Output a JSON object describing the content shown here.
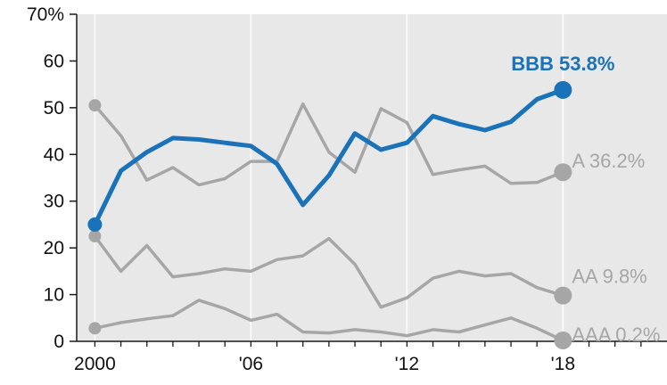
{
  "chart_data": {
    "type": "line",
    "title": "",
    "xlabel": "",
    "ylabel": "",
    "x": [
      2000,
      2001,
      2002,
      2003,
      2004,
      2005,
      2006,
      2007,
      2008,
      2009,
      2010,
      2011,
      2012,
      2013,
      2014,
      2015,
      2016,
      2017,
      2018
    ],
    "xlim": [
      1999.3,
      2022
    ],
    "ylim": [
      0,
      70
    ],
    "y_ticks": [
      0,
      10,
      20,
      30,
      40,
      50,
      60,
      70
    ],
    "y_tick_labels": [
      "0",
      "10",
      "20",
      "30",
      "40",
      "50",
      "60",
      "70%"
    ],
    "x_ticks": [
      2000,
      2006,
      2012,
      2018
    ],
    "x_tick_labels": [
      "2000",
      "'06",
      "'12",
      "'18"
    ],
    "grid": true,
    "grid_axis": "x",
    "series": [
      {
        "name": "BBB",
        "label": "BBB 53.8%",
        "highlight": true,
        "color": "#1a72b8",
        "values": [
          25,
          36.5,
          40.5,
          43.5,
          43.2,
          42.5,
          41.8,
          38,
          29.2,
          35.5,
          44.5,
          41,
          42.5,
          48.2,
          46.5,
          45.2,
          47,
          51.8,
          53.8
        ]
      },
      {
        "name": "A",
        "label": "A 36.2%",
        "highlight": false,
        "color": "#a6a6a6",
        "values": [
          50.5,
          44,
          34.5,
          37.2,
          33.5,
          34.8,
          38.5,
          38.5,
          50.8,
          40.5,
          36.2,
          49.8,
          46.8,
          35.7,
          36.7,
          37.5,
          33.8,
          34,
          36.2
        ]
      },
      {
        "name": "AA",
        "label": "AA 9.8%",
        "highlight": false,
        "color": "#a6a6a6",
        "values": [
          22.5,
          15,
          20.5,
          13.8,
          14.5,
          15.5,
          15,
          17.5,
          18.3,
          22,
          16.5,
          7.3,
          9.3,
          13.5,
          15,
          14,
          14.5,
          11.5,
          9.8
        ]
      },
      {
        "name": "AAA",
        "label": "AAA 0.2%",
        "highlight": false,
        "color": "#a6a6a6",
        "values": [
          2.8,
          4,
          4.8,
          5.5,
          8.8,
          7,
          4.5,
          5.8,
          2,
          1.8,
          2.5,
          2,
          1.2,
          2.5,
          2,
          3.5,
          5,
          2.8,
          0.2
        ]
      }
    ],
    "colors": {
      "plot_background": "#e8e8e8",
      "grid": "#ffffff",
      "axis": "#1a1a1a",
      "text": "#111111"
    }
  }
}
